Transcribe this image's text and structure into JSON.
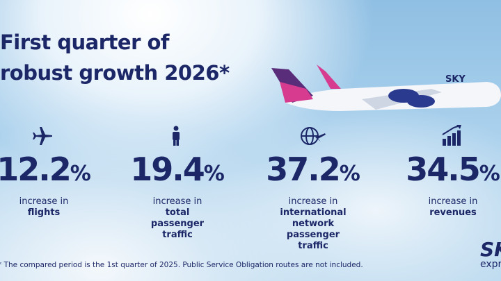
{
  "title": {
    "line1": "First quarter of",
    "line2": "robust growth 2026*"
  },
  "stats": [
    {
      "value": "12.2",
      "unit": "%",
      "label": "increase in",
      "subject": "flights"
    },
    {
      "value": "19.4",
      "unit": "%",
      "label": "increase in",
      "subject": "total passenger traffic"
    },
    {
      "value": "37.2",
      "unit": "%",
      "label": "increase in",
      "subject": "international network passenger traffic"
    },
    {
      "value": "34.5",
      "unit": "%",
      "label": "increase in",
      "subject": "revenues"
    }
  ],
  "footnote": "* The compared period is the 1st quarter of 2025. Public Service Obligation routes are not included.",
  "logo": {
    "name": "SKY",
    "tagline": "express"
  },
  "plane": {
    "livery": "SKY"
  }
}
